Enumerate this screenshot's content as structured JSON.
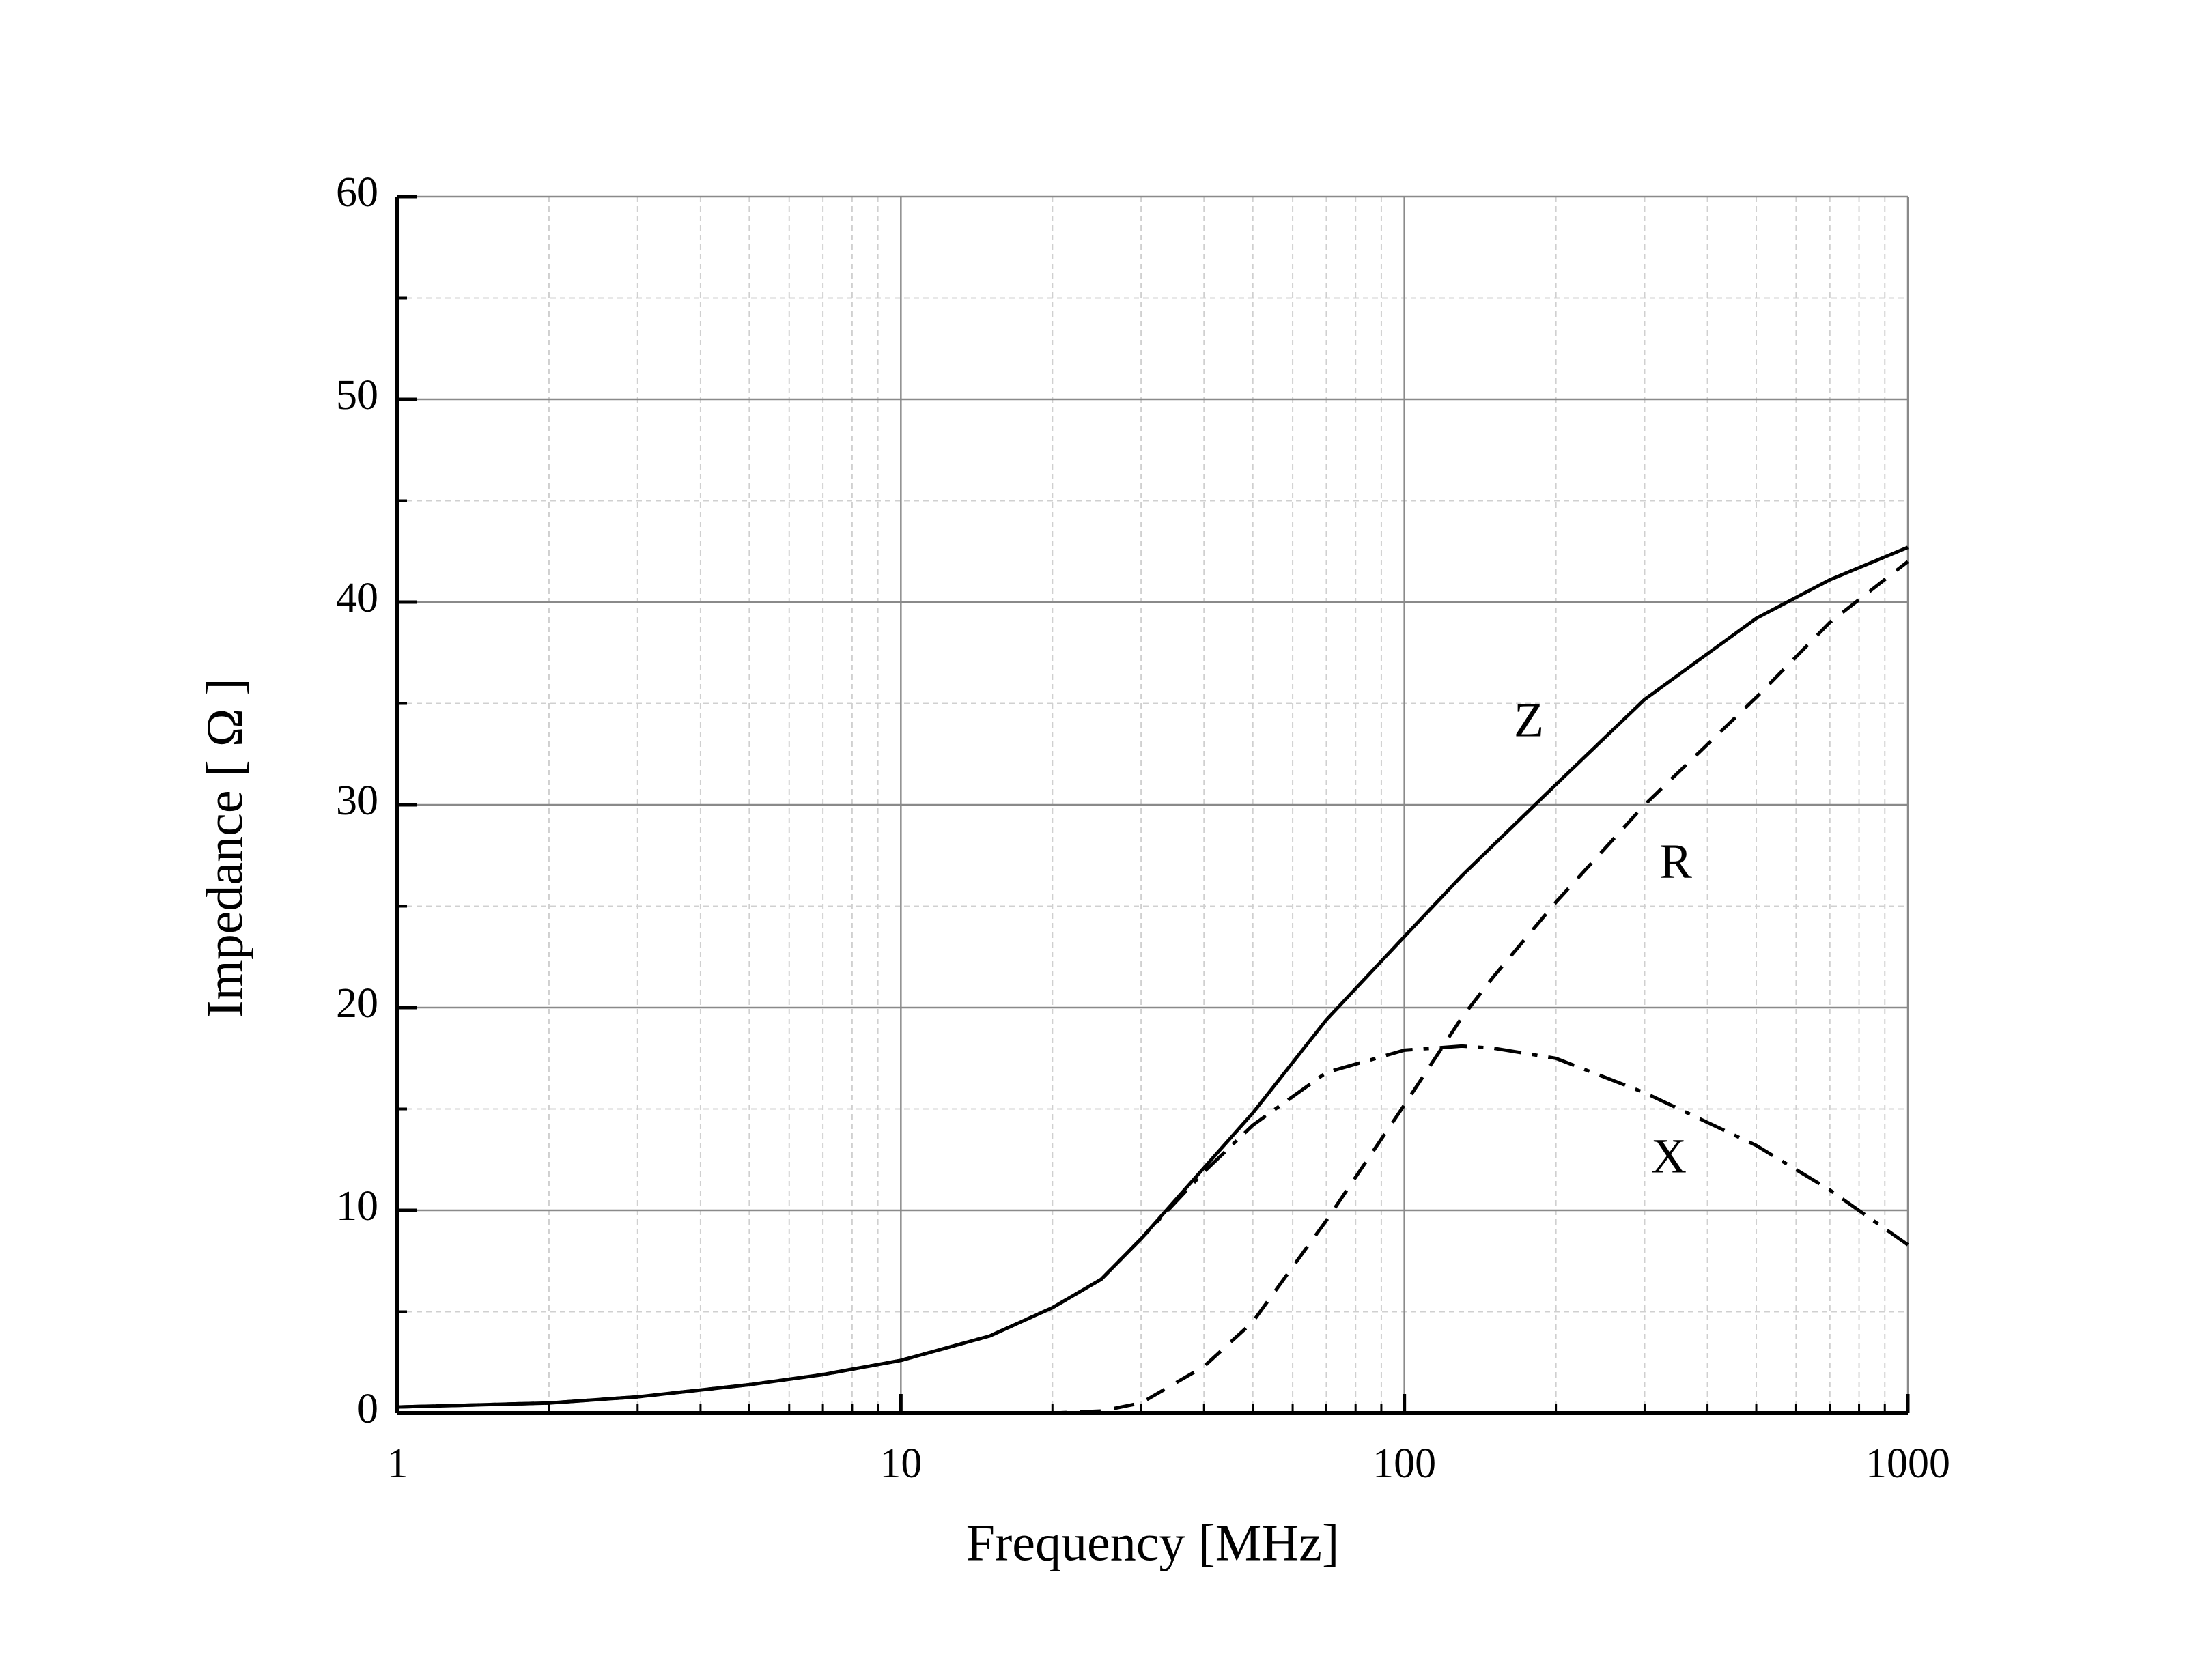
{
  "chart_data": {
    "type": "line",
    "xlabel": "Frequency [MHz]",
    "ylabel": "Impedance [ Ω ]",
    "xscale": "log",
    "x": [
      1,
      2,
      3,
      5,
      7,
      10,
      15,
      20,
      25,
      30,
      40,
      50,
      70,
      100,
      130,
      150,
      200,
      300,
      500,
      700,
      1000
    ],
    "series": [
      {
        "name": "Z",
        "color": "#000000",
        "linestyle": "solid",
        "values": [
          0.3,
          0.5,
          0.8,
          1.4,
          1.9,
          2.6,
          3.8,
          5.2,
          6.6,
          8.6,
          12.1,
          14.8,
          19.4,
          23.5,
          26.5,
          28,
          31,
          35.2,
          39.2,
          41.1,
          42.7
        ]
      },
      {
        "name": "R",
        "color": "#000000",
        "linestyle": "dashed",
        "values": [
          0,
          0,
          0,
          0,
          0,
          0,
          0,
          0,
          0.1,
          0.5,
          2.3,
          4.5,
          9.5,
          15.2,
          19.5,
          21.5,
          25.2,
          30,
          35.3,
          39,
          42
        ]
      },
      {
        "name": "X",
        "color": "#000000",
        "linestyle": "dashdot",
        "values": [
          0.3,
          0.5,
          0.8,
          1.4,
          1.9,
          2.6,
          3.8,
          5.2,
          6.6,
          8.6,
          11.9,
          14.2,
          16.8,
          17.9,
          18.1,
          18,
          17.5,
          15.8,
          13.2,
          11,
          8.3
        ]
      }
    ],
    "xlim": [
      1,
      1000
    ],
    "xticks": [
      1,
      10,
      100,
      1000
    ],
    "xminorticks": [
      2,
      3,
      4,
      5,
      6,
      7,
      8,
      9,
      20,
      30,
      40,
      50,
      60,
      70,
      80,
      90,
      200,
      300,
      400,
      500,
      600,
      700,
      800,
      900
    ],
    "ylim": [
      0,
      60
    ],
    "yticks": [
      0,
      10,
      20,
      30,
      40,
      50,
      60
    ],
    "yminorticks": [
      5,
      15,
      25,
      35,
      45,
      55
    ],
    "grid": true
  }
}
